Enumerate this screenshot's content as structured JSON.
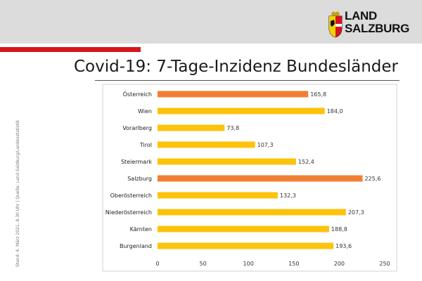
{
  "logo": {
    "line1": "LAND",
    "line2": "SALZBURG"
  },
  "source_note": "Stand: 4. März 2021, 8.30 Uhr | Quelle: Land Salzburg/Landesstatistik",
  "colors": {
    "header_gray": "#dcdcdc",
    "brand_red": "#d7151c",
    "bar_yellow": "#fcc30d",
    "bar_orange": "#f07f33"
  },
  "chart_data": {
    "type": "bar",
    "orientation": "horizontal",
    "title": "Covid-19: 7-Tage-Inzidenz Bundesländer",
    "categories": [
      "Österreich",
      "Wien",
      "Vorarlberg",
      "Tirol",
      "Steiermark",
      "Salzburg",
      "Oberösterreich",
      "Niederösterreich",
      "Kärnten",
      "Burgenland"
    ],
    "values": [
      165.8,
      184.0,
      73.8,
      107.3,
      152.4,
      225.6,
      132.3,
      207.3,
      188.8,
      193.6
    ],
    "value_labels": [
      "165,8",
      "184,0",
      "73,8",
      "107,3",
      "152,4",
      "225,6",
      "132,3",
      "207,3",
      "188,8",
      "193,6"
    ],
    "highlighted": [
      "Österreich",
      "Salzburg"
    ],
    "xlim": [
      0,
      250
    ],
    "xticks": [
      "0",
      "50",
      "100",
      "150",
      "200",
      "250"
    ],
    "xlabel": "",
    "ylabel": "",
    "grid": false,
    "legend": "none"
  }
}
